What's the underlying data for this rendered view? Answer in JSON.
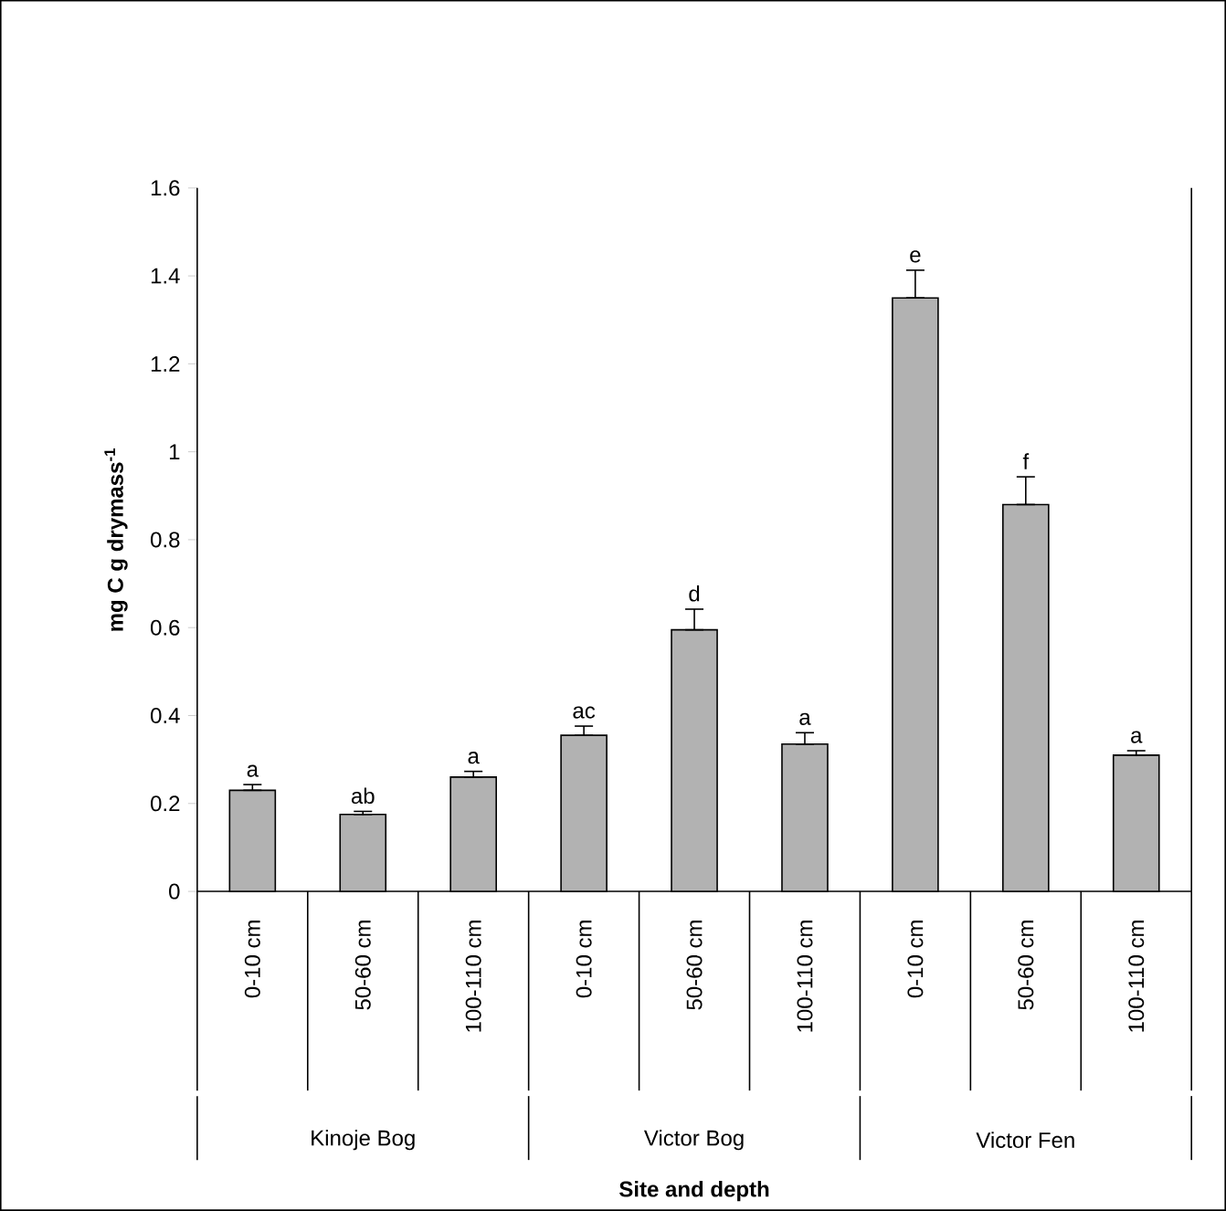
{
  "chart_data": {
    "type": "bar",
    "ylabel": "mg C g drymass$^{-1}$",
    "categories": [
      "0-10 cm",
      "50-60 cm",
      "100-110 cm",
      "0-10 cm",
      "50-60 cm",
      "100-110 cm",
      "0-10 cm",
      "50-60 cm",
      "100-110 cm"
    ],
    "values": [
      0.23,
      0.175,
      0.26,
      0.355,
      0.595,
      0.335,
      1.35,
      0.88,
      0.31
    ],
    "errors": [
      [
        0.23,
        0.243
      ],
      [
        0.175,
        0.182
      ],
      [
        0.26,
        0.273
      ],
      [
        0.355,
        0.376
      ],
      [
        0.595,
        0.642
      ],
      [
        0.335,
        0.361
      ],
      [
        1.35,
        1.413
      ],
      [
        0.88,
        0.943
      ],
      [
        0.31,
        0.32
      ]
    ],
    "color": "#b2b2b2",
    "ylim": [
      0,
      1.6
    ],
    "yticks": [
      0,
      {
        "value": 0.2,
        "label": "0.2"
      },
      {
        "value": 0.4,
        "label": "0.4"
      },
      {
        "value": 0.6,
        "label": "0.6"
      },
      {
        "value": 0.8,
        "label": "0.8"
      },
      1,
      {
        "value": 1.2,
        "label": "1.2"
      },
      {
        "value": 1.4,
        "label": "1.4"
      },
      {
        "value": 1.6,
        "label": "1.6"
      }
    ],
    "annotations": [
      "a",
      "ab",
      "a",
      "ac",
      "d",
      "a",
      "e",
      "f",
      "a",
      "Kinoje Bog",
      "Victor Bog",
      "Victor Fen",
      "Site and depth"
    ]
  }
}
